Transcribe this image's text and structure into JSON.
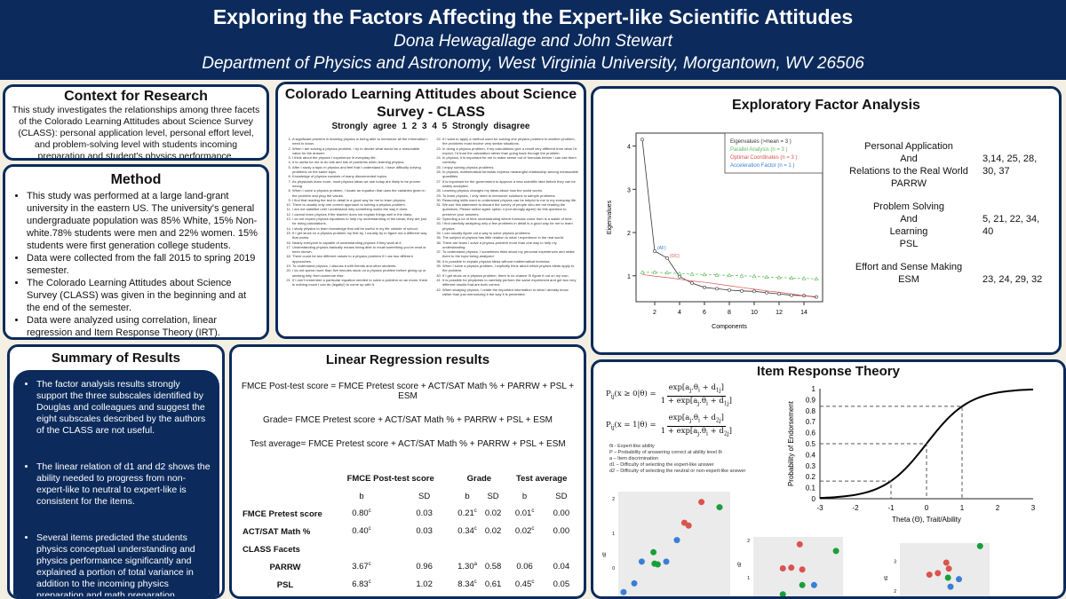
{
  "header": {
    "title": "Exploring the Factors Affecting the Expert-like Scientific Attitudes",
    "authors": "Dona Hewagallage and John Stewart",
    "affiliation": "Department of Physics and Astronomy, West Virginia University, Morgantown, WV 26506"
  },
  "context": {
    "title": "Context for Research",
    "text": "This study investigates the relationships among three facets of the Colorado Learning Attitudes about Science Survey (CLASS): personal application level, personal effort level, and problem-solving level with students incoming preparation and student's physics performance."
  },
  "method": {
    "title": "Method",
    "items": [
      "This study was performed at a large land-grant university in the eastern US. The university's general undergraduate population was 85% White, 15% Non-white.78% students were men and 22% women. 15% students were first generation college students.",
      "Data were collected from the fall 2015 to spring 2019 semester.",
      "The Colorado Learning Attitudes about Science Survey (CLASS) was given in the beginning and at the end of the semester.",
      "Data were analyzed using correlation, linear regression and Item Response Theory (IRT)."
    ]
  },
  "survey": {
    "title": "Colorado Learning Attitudes about Science Survey - CLASS",
    "scale": "Strongly agree    1    2    3    4    5   Strongly disagree",
    "items_left": [
      "A significant problem in learning physics is being able to memorize all the information I need to know.",
      "When I am solving a physics problem, I try to decide what would be a reasonable value for the answer.",
      "I think about the physics I experience in everyday life.",
      "It is useful for me to do lots and lots of problems when learning physics.",
      "After I study a topic in physics and feel that I understand it, I have difficulty solving problems on the same topic.",
      "Knowledge of physics consists of many disconnected topics.",
      "As physicists learn more, most physics ideas we use today are likely to be proven wrong.",
      "When I solve a physics problem, I locate an equation that uses the variables given in the problem and plug the values.",
      "I find that reading the text in detail is a good way for me to learn physics.",
      "There is usually only one correct approach to solving a physics problem.",
      "I am not satisfied until I understand why something works the way it does.",
      "I cannot learn physics if the teacher does not explain things well in the class.",
      "I do not expect physics equations to help my understanding of the ideas; they are just for doing calculations.",
      "I study physics to learn knowledge that will be useful in my life outside of school.",
      "If I get stuck on a physics problem my first try, I usually try to figure out a different way that works.",
      "Nearly everyone is capable of understanding physics if they work at it.",
      "Understanding physics basically means being able to recall something you've read or been shown.",
      "There could be two different values to a physics problem if I use two different approaches.",
      "To understand physics, I discuss it with friends and other students.",
      "I do not spend more than five minutes stuck on a physics problem before giving up or seeking help from someone else.",
      "If I don't remember a particular equation needed to solve a problem on an exam, there is nothing much I can do (legally!) to come up with it."
    ],
    "items_right": [
      "If I want to apply a method used for solving one physics problem to another problem, the problems must involve very similar situations.",
      "In doing a physics problem, if my calculations give a result very different from what I'd expect, I'd trust the calculation rather than going back through the problem.",
      "In physics, it is important for me to make sense out of formulas before I can use them correctly.",
      "I enjoy solving physics problems.",
      "In physics, mathematical formulas express meaningful relationship among measurable quantities.",
      "It is important for the government to approve a new scientific idea before they can be widely accepted.",
      "Learning physics changes my ideas about how the world works.",
      "To learn physics, I only need to memorize solutions to sample problems.",
      "Reasoning skills used to understand physics can be helpful to me in my everyday life.",
      "We use this statement to discard the survey of people who are not reading the questions. Please select agree option 4 (not strongly agree) for this question to preserve your answers.",
      "Spending a lot of time understanding where formulas come from is a waste of time.",
      "I find carefully analyzing only a few problems in detail is a good way for me to learn physics.",
      "I can usually figure out a way to solve physics problems.",
      "The subject of physics has little relation to what I experience in the real world.",
      "There are times I solve a physics problem more than one way to help my understanding.",
      "To understand physics, I sometimes think about my personal experiences and relate them to the topic being analyzed.",
      "It is possible to explain physics ideas without mathematical formulas.",
      "When I solve a physics problem, I explicitly think about which physics ideas apply to the problem.",
      "If I get stuck on a physics problem, there is no chance I'll figure it out on my own.",
      "It is possible for physicists to carefully perform the same experiment and get two very different results that are both correct.",
      "When studying physics, I relate the important information to what I already know rather than just memorizing it the way it is presented."
    ]
  },
  "efa": {
    "title": "Exploratory Factor Analysis",
    "factors": [
      {
        "name": [
          "Personal Application",
          "And",
          "Relations to the Real World",
          "PARRW"
        ],
        "items": "3,14, 25, 28, 30, 37"
      },
      {
        "name": [
          "Problem Solving",
          "And",
          "Learning",
          "PSL"
        ],
        "items": "5, 21, 22, 34, 40"
      },
      {
        "name": [
          "Effort and Sense Making",
          "ESM"
        ],
        "items": "23, 24, 29, 32"
      }
    ]
  },
  "summary": {
    "title": "Summary of Results",
    "items": [
      "The factor analysis results strongly support the three subscales identified by Douglas and colleagues and suggest the eight subscales described by the authors of the CLASS are not useful.",
      "The linear relation of d1 and d2 shows the ability needed to progress from non-expert-like to neutral to expert-like is consistent for the items.",
      "Several items predicted the students physics conceptual understanding and physics performance significantly and explained a portion of total variance in addition to the incoming physics preparation and math preparation."
    ]
  },
  "regression": {
    "title": "Linear Regression results",
    "equations": [
      "FMCE Post-test score = FMCE Pretest score + ACT/SAT Math % + PARRW + PSL + ESM",
      "Grade= FMCE Pretest score + ACT/SAT Math % + PARRW + PSL + ESM",
      "Test average= FMCE Pretest score + ACT/SAT Math % + PARRW + PSL + ESM"
    ],
    "groups": [
      "FMCE Post-test score",
      "Grade",
      "Test average"
    ],
    "sub": [
      "b",
      "SD",
      "b",
      "SD",
      "b",
      "SD"
    ],
    "facets_label": "CLASS Facets",
    "rows": [
      {
        "label": "FMCE Pretest score",
        "cells": [
          [
            "0.80",
            "c"
          ],
          [
            "0.03",
            ""
          ],
          [
            "0.21",
            "c"
          ],
          [
            "0.02",
            ""
          ],
          [
            "0.01",
            "c"
          ],
          [
            "0.00",
            ""
          ]
        ]
      },
      {
        "label": "ACT/SAT Math %",
        "cells": [
          [
            "0.40",
            "c"
          ],
          [
            "0.03",
            ""
          ],
          [
            "0.34",
            "c"
          ],
          [
            "0.02",
            ""
          ],
          [
            "0.02",
            "c"
          ],
          [
            "0.00",
            ""
          ]
        ]
      },
      {
        "label": "PARRW",
        "cells": [
          [
            "3.67",
            "c"
          ],
          [
            "0.96",
            ""
          ],
          [
            "1.30",
            "a"
          ],
          [
            "0.58",
            ""
          ],
          [
            "0.06",
            ""
          ],
          [
            "0.04",
            ""
          ]
        ]
      },
      {
        "label": "PSL",
        "cells": [
          [
            "6.83",
            "c"
          ],
          [
            "1.02",
            ""
          ],
          [
            "8.34",
            "c"
          ],
          [
            "0.61",
            ""
          ],
          [
            "0.45",
            "c"
          ],
          [
            "0.05",
            ""
          ]
        ]
      }
    ]
  },
  "irt": {
    "title": "Item Response Theory",
    "legend": [
      "θi - Expert-like ability",
      "P – Probability of answering correct at ability level θi",
      "a – Item discrimination",
      "d1 – Difficulty of selecting the expert-like answer",
      "d2 – Difficulty of selecting the neutral or non-expert-like answer"
    ]
  },
  "chart_data": [
    {
      "type": "line",
      "title": "Scree plot",
      "xlabel": "Components",
      "ylabel": "Eigenvalues",
      "xlim": [
        1,
        15
      ],
      "ylim": [
        0.4,
        4.3
      ],
      "xticks": [
        2,
        4,
        6,
        8,
        10,
        12,
        14
      ],
      "yticks": [
        1,
        2,
        3,
        4
      ],
      "legend": [
        "Eigenvalues (>mean  =  3 )",
        "Parallel Analysis (n =  3 )",
        "Optimal Coordinates (n =  3 )",
        "Acceleration Factor (n =  1 )"
      ],
      "legend_position": "top-right",
      "annotations": [
        "(AF)",
        "(OC)"
      ],
      "x": [
        1,
        2,
        3,
        4,
        5,
        6,
        7,
        8,
        9,
        10,
        11,
        12,
        13,
        14,
        15
      ],
      "series": [
        {
          "name": "Eigenvalues",
          "values": [
            4.15,
            1.57,
            1.41,
            0.98,
            0.83,
            0.73,
            0.7,
            0.67,
            0.65,
            0.64,
            0.61,
            0.58,
            0.55,
            0.54,
            0.51
          ]
        },
        {
          "name": "Parallel Analysis",
          "values": [
            1.08,
            1.08,
            1.07,
            1.05,
            1.04,
            1.03,
            1.02,
            1.01,
            1.0,
            0.99,
            0.97,
            0.96,
            0.95,
            0.94,
            0.93
          ]
        },
        {
          "name": "Optimal Coordinates",
          "values": [
            1.03,
            0.99,
            0.96,
            0.92,
            0.88,
            0.85,
            0.81,
            0.77,
            0.73,
            0.69,
            0.65,
            0.62,
            0.58,
            0.54,
            0.5
          ]
        }
      ]
    },
    {
      "type": "line",
      "title": "Item characteristic curve",
      "xlabel": "Theta (Θ), Trait/Ability",
      "ylabel": "Probability of Endorsement",
      "xlim": [
        -3,
        3
      ],
      "ylim": [
        0,
        1
      ],
      "xticks": [
        "-3",
        "-2",
        "-1",
        "0",
        "1",
        "2",
        "3"
      ],
      "yticks": [
        "0",
        "0.1",
        "0.2",
        "0.3",
        "0.4",
        "0.5",
        "0.6",
        "0.7",
        "0.8",
        "0.9",
        "1"
      ],
      "a": 1.65,
      "b": 0,
      "markers": [
        [
          -1,
          0.16
        ],
        [
          0,
          0.5
        ],
        [
          1,
          0.84
        ]
      ]
    },
    {
      "type": "scatter",
      "ylabel": "d2",
      "yticks": [
        "0",
        "1",
        "2"
      ],
      "points": [
        [
          0.78,
          1.9,
          "r"
        ],
        [
          0.95,
          1.75,
          "g"
        ],
        [
          0.62,
          1.3,
          "r"
        ],
        [
          0.66,
          1.22,
          "r"
        ],
        [
          0.55,
          0.8,
          "b"
        ],
        [
          0.33,
          0.45,
          "g"
        ],
        [
          0.22,
          0.18,
          "b"
        ],
        [
          0.34,
          0.12,
          "g"
        ],
        [
          0.37,
          0.1,
          "g"
        ],
        [
          0.45,
          0.18,
          "b"
        ],
        [
          0.15,
          -0.45,
          "b"
        ],
        [
          0.05,
          -0.7,
          "b"
        ]
      ]
    },
    {
      "type": "scatter",
      "ylabel": "d2",
      "yticks": [
        "1",
        "2"
      ],
      "points": [
        [
          0.55,
          1.9,
          "r"
        ],
        [
          0.98,
          1.72,
          "g"
        ],
        [
          0.35,
          1.25,
          "r"
        ],
        [
          0.45,
          1.27,
          "r"
        ],
        [
          0.58,
          1.22,
          "r"
        ],
        [
          0.58,
          0.8,
          "g"
        ],
        [
          0.72,
          0.8,
          "b"
        ],
        [
          0.35,
          0.55,
          "g"
        ]
      ]
    },
    {
      "type": "scatter",
      "ylabel": "d1",
      "yticks": [
        "2",
        "3"
      ],
      "points": [
        [
          0.95,
          3.5,
          "g"
        ],
        [
          0.55,
          2.95,
          "r"
        ],
        [
          0.58,
          2.75,
          "r"
        ],
        [
          0.35,
          2.55,
          "r"
        ],
        [
          0.45,
          2.6,
          "r"
        ],
        [
          0.57,
          2.45,
          "g"
        ],
        [
          0.7,
          2.4,
          "b"
        ],
        [
          0.6,
          2.15,
          "b"
        ]
      ]
    }
  ],
  "colors": {
    "navy": "#0c2b5c",
    "red": "#d9534f",
    "green": "#1a9e3a",
    "blue": "#3a7fd5"
  }
}
